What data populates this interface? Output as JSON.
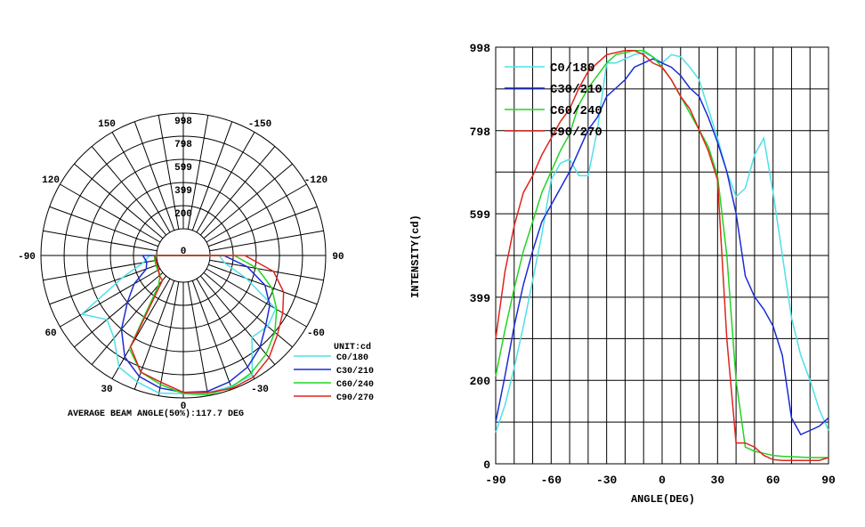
{
  "colors": {
    "C0/180": "#4fe0e8",
    "C30/210": "#1a2bd6",
    "C60/240": "#22d422",
    "C90/270": "#e0241c",
    "grid": "#000000"
  },
  "chart_data": [
    {
      "type": "polar",
      "radial_ticks": [
        "0",
        "200",
        "399",
        "599",
        "798",
        "998"
      ],
      "radial_max": 998,
      "angle_labels": [
        "-150",
        "150",
        "-120",
        "120",
        "-90",
        "90",
        "-60",
        "60",
        "-30",
        "30",
        "0"
      ],
      "angle_label_values": [
        -150,
        150,
        -120,
        120,
        -90,
        90,
        -60,
        60,
        -30,
        30,
        0
      ],
      "unit_label": "UNIT:cd",
      "caption": "AVERAGE BEAM ANGLE(50%):117.7 DEG",
      "legend": [
        "C0/180",
        "C30/210",
        "C60/240",
        "C90/270"
      ],
      "series": [
        {
          "name": "C0/180",
          "angles": [
            -90,
            -80,
            -70,
            -60,
            -50,
            -40,
            -30,
            -20,
            -10,
            0,
            10,
            20,
            30,
            40,
            50,
            60,
            70,
            80,
            90
          ],
          "values": [
            80,
            130,
            350,
            690,
            720,
            690,
            960,
            970,
            975,
            960,
            975,
            930,
            880,
            700,
            630,
            780,
            330,
            120,
            60
          ]
        },
        {
          "name": "C30/210",
          "angles": [
            -90,
            -80,
            -70,
            -60,
            -50,
            -40,
            -30,
            -20,
            -10,
            0,
            10,
            20,
            30,
            40,
            50,
            60,
            70,
            80,
            90
          ],
          "values": [
            120,
            330,
            520,
            630,
            700,
            800,
            880,
            930,
            960,
            950,
            930,
            880,
            780,
            600,
            400,
            260,
            110,
            90,
            120
          ]
        },
        {
          "name": "C60/240",
          "angles": [
            -90,
            -80,
            -70,
            -60,
            -50,
            -40,
            -30,
            -20,
            -10,
            0,
            10,
            20,
            30,
            40,
            50,
            60,
            70,
            80,
            90
          ],
          "values": [
            210,
            420,
            580,
            700,
            800,
            880,
            940,
            980,
            990,
            960,
            900,
            840,
            700,
            100,
            30,
            25,
            20,
            20,
            20
          ]
        },
        {
          "name": "C90/270",
          "angles": [
            -90,
            -80,
            -70,
            -60,
            -50,
            -40,
            -30,
            -20,
            -10,
            0,
            10,
            20,
            30,
            40,
            50,
            60,
            70,
            80,
            90
          ],
          "values": [
            300,
            560,
            690,
            760,
            830,
            920,
            980,
            990,
            970,
            950,
            880,
            840,
            680,
            50,
            40,
            15,
            10,
            10,
            15
          ]
        }
      ]
    },
    {
      "type": "line",
      "xlabel": "ANGLE(DEG)",
      "ylabel": "INTENSITY(cd)",
      "xlim": [
        -90,
        90
      ],
      "ylim": [
        0,
        998
      ],
      "x_ticks": [
        "-90",
        "-60",
        "-30",
        "0",
        "30",
        "60",
        "90"
      ],
      "y_ticks": [
        "0",
        "200",
        "399",
        "599",
        "798",
        "998"
      ],
      "y_tick_values": [
        0,
        200,
        399,
        599,
        798,
        998
      ],
      "legend": [
        "C0/180",
        "C30/210",
        "C60/240",
        "C90/270"
      ],
      "series": [
        {
          "name": "C0/180",
          "x": [
            -90,
            -85,
            -80,
            -75,
            -70,
            -65,
            -60,
            -55,
            -50,
            -45,
            -40,
            -35,
            -30,
            -25,
            -20,
            -15,
            -10,
            -5,
            0,
            5,
            10,
            15,
            20,
            25,
            30,
            35,
            40,
            45,
            50,
            55,
            60,
            65,
            70,
            75,
            80,
            85,
            90
          ],
          "y": [
            75,
            140,
            230,
            330,
            440,
            550,
            680,
            720,
            730,
            690,
            690,
            800,
            960,
            960,
            970,
            980,
            985,
            975,
            960,
            980,
            975,
            950,
            920,
            850,
            780,
            700,
            640,
            660,
            740,
            780,
            650,
            500,
            350,
            260,
            200,
            130,
            80
          ]
        },
        {
          "name": "C30/210",
          "x": [
            -90,
            -85,
            -80,
            -75,
            -70,
            -65,
            -60,
            -55,
            -50,
            -45,
            -40,
            -35,
            -30,
            -25,
            -20,
            -15,
            -10,
            -5,
            0,
            5,
            10,
            15,
            20,
            25,
            30,
            35,
            40,
            45,
            50,
            55,
            60,
            65,
            70,
            75,
            80,
            85,
            90
          ],
          "y": [
            100,
            210,
            330,
            430,
            510,
            580,
            620,
            660,
            700,
            750,
            800,
            830,
            880,
            900,
            920,
            950,
            960,
            970,
            960,
            950,
            930,
            900,
            880,
            830,
            770,
            700,
            600,
            450,
            400,
            370,
            330,
            260,
            110,
            70,
            80,
            90,
            110
          ]
        },
        {
          "name": "C60/240",
          "x": [
            -90,
            -85,
            -80,
            -75,
            -70,
            -65,
            -60,
            -55,
            -50,
            -45,
            -40,
            -35,
            -30,
            -25,
            -20,
            -15,
            -10,
            -5,
            0,
            5,
            10,
            15,
            20,
            25,
            30,
            35,
            40,
            45,
            50,
            55,
            60,
            65,
            70,
            75,
            80,
            85,
            90
          ],
          "y": [
            210,
            320,
            420,
            510,
            580,
            650,
            700,
            750,
            790,
            860,
            900,
            930,
            960,
            980,
            985,
            990,
            990,
            975,
            950,
            920,
            880,
            840,
            800,
            760,
            690,
            500,
            200,
            40,
            30,
            25,
            20,
            18,
            17,
            16,
            15,
            15,
            15
          ]
        },
        {
          "name": "C90/270",
          "x": [
            -90,
            -85,
            -80,
            -75,
            -70,
            -65,
            -60,
            -55,
            -50,
            -45,
            -40,
            -35,
            -30,
            -25,
            -20,
            -15,
            -10,
            -5,
            0,
            5,
            10,
            15,
            20,
            25,
            30,
            35,
            40,
            45,
            50,
            55,
            60,
            65,
            70,
            75,
            80,
            85,
            90
          ],
          "y": [
            300,
            460,
            570,
            650,
            690,
            740,
            780,
            820,
            850,
            900,
            940,
            960,
            980,
            985,
            990,
            990,
            980,
            960,
            950,
            920,
            880,
            850,
            800,
            750,
            680,
            300,
            50,
            50,
            40,
            20,
            10,
            8,
            8,
            8,
            8,
            8,
            15
          ]
        }
      ]
    }
  ]
}
